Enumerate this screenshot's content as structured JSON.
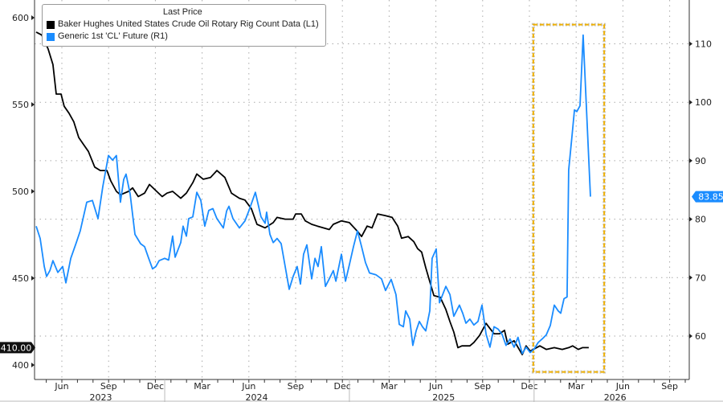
{
  "chart_data": {
    "type": "line",
    "x_units": "months since Jan 2023",
    "legend_title": "Last Price",
    "legend_placement": "top-left",
    "series": [
      {
        "name": "Baker Hughes United States Crude Oil Rotary Rig Count Data  (L1)",
        "axis": "left",
        "color": "#000000",
        "last_value_label": "410.00",
        "points": [
          [
            3.35,
            591.7
          ],
          [
            3.71,
            590
          ],
          [
            4.12,
            582
          ],
          [
            4.43,
            573
          ],
          [
            4.64,
            556
          ],
          [
            4.95,
            556
          ],
          [
            5.15,
            549
          ],
          [
            5.46,
            545
          ],
          [
            5.77,
            540
          ],
          [
            6.08,
            531
          ],
          [
            6.39,
            527
          ],
          [
            6.7,
            523
          ],
          [
            7.11,
            514
          ],
          [
            7.47,
            512
          ],
          [
            7.89,
            512
          ],
          [
            8.14,
            506
          ],
          [
            8.5,
            500
          ],
          [
            8.76,
            498
          ],
          [
            9.28,
            500
          ],
          [
            9.54,
            502
          ],
          [
            9.9,
            497
          ],
          [
            10.31,
            499
          ],
          [
            10.62,
            504
          ],
          [
            11.08,
            500
          ],
          [
            11.44,
            497
          ],
          [
            11.75,
            499
          ],
          [
            12.11,
            500
          ],
          [
            12.63,
            496
          ],
          [
            12.99,
            499
          ],
          [
            13.4,
            505
          ],
          [
            13.66,
            510
          ],
          [
            14.07,
            507
          ],
          [
            14.54,
            508
          ],
          [
            14.95,
            512
          ],
          [
            15.46,
            508
          ],
          [
            15.88,
            499
          ],
          [
            16.39,
            496
          ],
          [
            16.75,
            495
          ],
          [
            17.16,
            490
          ],
          [
            17.52,
            481
          ],
          [
            18.04,
            479
          ],
          [
            18.56,
            482
          ],
          [
            18.81,
            485
          ],
          [
            19.33,
            484
          ],
          [
            19.84,
            484
          ],
          [
            20.0,
            487
          ],
          [
            20.36,
            487
          ],
          [
            20.62,
            483
          ],
          [
            21.03,
            481
          ],
          [
            21.39,
            480
          ],
          [
            22.16,
            478
          ],
          [
            22.42,
            481
          ],
          [
            22.94,
            483
          ],
          [
            23.45,
            482
          ],
          [
            23.97,
            477
          ],
          [
            24.23,
            474
          ],
          [
            24.59,
            480
          ],
          [
            24.9,
            479
          ],
          [
            25.26,
            487
          ],
          [
            25.77,
            486
          ],
          [
            26.19,
            485
          ],
          [
            26.55,
            480
          ],
          [
            26.8,
            473
          ],
          [
            27.22,
            474
          ],
          [
            27.58,
            471
          ],
          [
            27.83,
            467
          ],
          [
            28.09,
            465
          ],
          [
            28.35,
            456
          ],
          [
            28.61,
            448
          ],
          [
            28.87,
            440
          ],
          [
            29.28,
            439
          ],
          [
            29.64,
            432
          ],
          [
            29.9,
            425
          ],
          [
            30.15,
            419
          ],
          [
            30.41,
            410
          ],
          [
            30.67,
            411
          ],
          [
            31.18,
            411
          ],
          [
            31.44,
            413
          ],
          [
            31.8,
            417
          ],
          [
            32.22,
            424
          ],
          [
            32.47,
            421
          ],
          [
            32.73,
            418
          ],
          [
            33.09,
            418
          ],
          [
            33.4,
            420
          ],
          [
            33.61,
            412
          ],
          [
            34.02,
            414
          ],
          [
            34.54,
            406
          ],
          [
            34.79,
            411
          ],
          [
            35.05,
            408
          ],
          [
            35.46,
            410
          ],
          [
            35.67,
            411
          ],
          [
            36.08,
            409
          ],
          [
            36.6,
            410
          ],
          [
            37.11,
            409
          ],
          [
            37.52,
            410
          ],
          [
            37.78,
            411
          ],
          [
            38.14,
            409
          ],
          [
            38.4,
            410
          ],
          [
            38.81,
            410
          ]
        ]
      },
      {
        "name": "Generic 1st 'CL' Future  (R1)",
        "axis": "right",
        "color": "#1a8cff",
        "last_value_label": "83.85",
        "points": [
          [
            3.35,
            78.8
          ],
          [
            3.61,
            76.7
          ],
          [
            3.87,
            71.9
          ],
          [
            4.02,
            70.2
          ],
          [
            4.23,
            71.2
          ],
          [
            4.43,
            72.9
          ],
          [
            4.74,
            70.9
          ],
          [
            5.05,
            71.9
          ],
          [
            5.26,
            69.1
          ],
          [
            5.57,
            73.3
          ],
          [
            5.93,
            76
          ],
          [
            6.18,
            78
          ],
          [
            6.6,
            82.9
          ],
          [
            6.96,
            83.2
          ],
          [
            7.32,
            80.1
          ],
          [
            7.63,
            85.6
          ],
          [
            7.99,
            90.9
          ],
          [
            8.25,
            90.1
          ],
          [
            8.5,
            90.9
          ],
          [
            8.76,
            82.9
          ],
          [
            8.97,
            86.8
          ],
          [
            9.12,
            87.7
          ],
          [
            9.38,
            84.3
          ],
          [
            9.69,
            77.4
          ],
          [
            10.05,
            75.8
          ],
          [
            10.31,
            75.3
          ],
          [
            10.57,
            73.3
          ],
          [
            10.82,
            71.5
          ],
          [
            11.03,
            71.9
          ],
          [
            11.24,
            72.9
          ],
          [
            11.6,
            73.3
          ],
          [
            11.85,
            73.0
          ],
          [
            12.11,
            77.1
          ],
          [
            12.27,
            73.5
          ],
          [
            12.63,
            76
          ],
          [
            12.78,
            78.8
          ],
          [
            12.99,
            77.1
          ],
          [
            13.14,
            80.1
          ],
          [
            13.4,
            80.4
          ],
          [
            13.66,
            84.6
          ],
          [
            13.92,
            83.2
          ],
          [
            14.17,
            78.8
          ],
          [
            14.43,
            81.5
          ],
          [
            14.69,
            81.8
          ],
          [
            14.95,
            80.1
          ],
          [
            15.36,
            78.5
          ],
          [
            15.57,
            81.4
          ],
          [
            15.72,
            82.2
          ],
          [
            15.98,
            80.1
          ],
          [
            16.39,
            78.5
          ],
          [
            16.75,
            79.7
          ],
          [
            17.01,
            81.5
          ],
          [
            17.42,
            84.6
          ],
          [
            17.78,
            80.4
          ],
          [
            18.04,
            79.3
          ],
          [
            18.14,
            81.2
          ],
          [
            18.35,
            77.4
          ],
          [
            18.56,
            76
          ],
          [
            18.81,
            76.7
          ],
          [
            19.07,
            75.8
          ],
          [
            19.33,
            71.9
          ],
          [
            19.59,
            68
          ],
          [
            19.84,
            70.2
          ],
          [
            20.1,
            71.9
          ],
          [
            20.31,
            68.9
          ],
          [
            20.51,
            74
          ],
          [
            20.72,
            75.6
          ],
          [
            21.03,
            69.8
          ],
          [
            21.24,
            73.3
          ],
          [
            21.44,
            71.9
          ],
          [
            21.65,
            75.3
          ],
          [
            21.91,
            68.5
          ],
          [
            22.16,
            69.8
          ],
          [
            22.42,
            71.2
          ],
          [
            22.58,
            69.4
          ],
          [
            22.94,
            74
          ],
          [
            23.2,
            69.4
          ],
          [
            23.45,
            72.2
          ],
          [
            23.71,
            75.3
          ],
          [
            23.97,
            78
          ],
          [
            24.23,
            75.3
          ],
          [
            24.48,
            72.6
          ],
          [
            24.74,
            70.8
          ],
          [
            25.15,
            70.5
          ],
          [
            25.51,
            69.8
          ],
          [
            25.77,
            67.8
          ],
          [
            26.13,
            69.7
          ],
          [
            26.44,
            67.1
          ],
          [
            26.65,
            62
          ],
          [
            26.91,
            61.6
          ],
          [
            27.06,
            64.3
          ],
          [
            27.32,
            62.9
          ],
          [
            27.52,
            58.4
          ],
          [
            27.73,
            60.9
          ],
          [
            27.94,
            62.5
          ],
          [
            28.14,
            61.6
          ],
          [
            28.35,
            60.9
          ],
          [
            28.61,
            64.3
          ],
          [
            28.76,
            73.3
          ],
          [
            29.02,
            74.9
          ],
          [
            29.23,
            65.7
          ],
          [
            29.64,
            68.5
          ],
          [
            29.9,
            67.1
          ],
          [
            30.15,
            63.4
          ],
          [
            30.51,
            65.3
          ],
          [
            30.72,
            63.9
          ],
          [
            30.93,
            62.2
          ],
          [
            31.18,
            62.9
          ],
          [
            31.44,
            61.9
          ],
          [
            31.7,
            62.5
          ],
          [
            31.96,
            65.3
          ],
          [
            32.22,
            60.3
          ],
          [
            32.47,
            58.1
          ],
          [
            32.73,
            61.6
          ],
          [
            32.99,
            61.2
          ],
          [
            33.25,
            60.3
          ],
          [
            33.5,
            58.4
          ],
          [
            33.76,
            59.5
          ],
          [
            34.02,
            58.1
          ],
          [
            34.27,
            59.8
          ],
          [
            34.54,
            57
          ],
          [
            34.79,
            58.1
          ],
          [
            35.05,
            57.2
          ],
          [
            35.31,
            57.8
          ],
          [
            35.56,
            58.9
          ],
          [
            35.82,
            59.5
          ],
          [
            36.08,
            60.2
          ],
          [
            36.34,
            61.8
          ],
          [
            36.6,
            65.3
          ],
          [
            36.85,
            64.3
          ],
          [
            37.01,
            63.9
          ],
          [
            37.22,
            66.4
          ],
          [
            37.42,
            66.7
          ],
          [
            37.52,
            88.4
          ],
          [
            37.73,
            94.2
          ],
          [
            37.89,
            98.7
          ],
          [
            38.04,
            98.4
          ],
          [
            38.25,
            99.4
          ],
          [
            38.45,
            111.5
          ],
          [
            38.92,
            83.85
          ]
        ]
      }
    ],
    "xlim": [
      3.35,
      45.4
    ],
    "ylim_left": [
      388,
      610
    ],
    "ylim_right": [
      55.3,
      117.6
    ],
    "left_ticks": [
      400,
      450,
      500,
      550,
      600
    ],
    "left_tick_labels": [
      "400",
      "450",
      "500",
      "550",
      "600"
    ],
    "right_ticks": [
      60,
      70,
      80,
      90,
      100,
      110
    ],
    "right_tick_labels": [
      "60",
      "70",
      "80",
      "90",
      "100",
      "110"
    ],
    "month_ticks": [
      5,
      8,
      11,
      14,
      17,
      20,
      23,
      26,
      29,
      32,
      35,
      38,
      41,
      44
    ],
    "month_labels": [
      "Jun",
      "Sep",
      "Dec",
      "Mar",
      "Jun",
      "Sep",
      "Dec",
      "Mar",
      "Jun",
      "Sep",
      "Dec",
      "Mar",
      "Jun",
      "Sep"
    ],
    "year_boundaries": [
      11.6,
      23.45,
      35.3
    ],
    "years": [
      {
        "label": "2023",
        "center": 7.5
      },
      {
        "label": "2024",
        "center": 17.5
      },
      {
        "label": "2025",
        "center": 29.5
      },
      {
        "label": "2026",
        "center": 40.5
      }
    ],
    "highlight": {
      "x_range": [
        35.25,
        39.8
      ],
      "y_range_left": [
        396,
        596
      ],
      "color": "#f0b000"
    },
    "grid": true
  }
}
